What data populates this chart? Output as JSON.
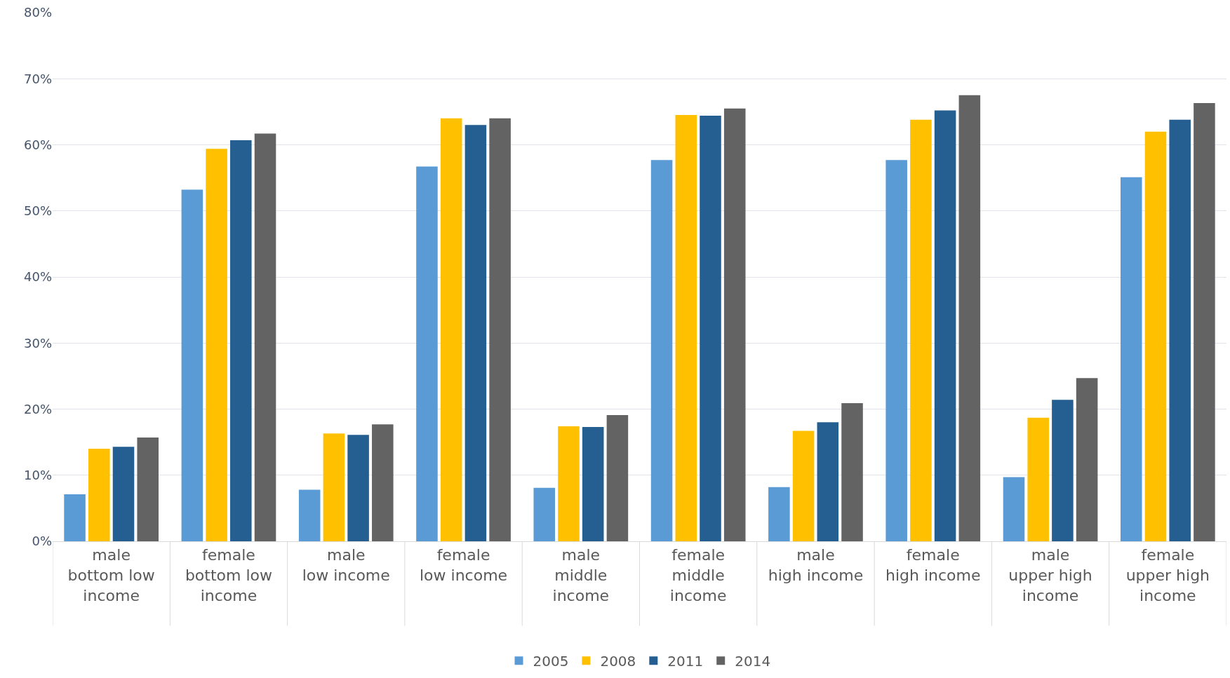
{
  "chart_data": {
    "type": "bar",
    "categories": [
      "male\nbottom low\nincome",
      "female\nbottom low\nincome",
      "male\nlow income",
      "female\nlow income",
      "male\nmiddle\nincome",
      "female\nmiddle\nincome",
      "male\nhigh income",
      "female\nhigh income",
      "male\nupper high\nincome",
      "female\nupper high\nincome"
    ],
    "series": [
      {
        "name": "2005",
        "color": "#5b9bd5",
        "values": [
          7.1,
          53.2,
          7.8,
          56.7,
          8.1,
          57.7,
          8.2,
          57.7,
          9.7,
          55.1
        ]
      },
      {
        "name": "2008",
        "color": "#ffc000",
        "values": [
          14.0,
          59.4,
          16.3,
          64.0,
          17.4,
          64.5,
          16.7,
          63.8,
          18.7,
          62.0
        ]
      },
      {
        "name": "2011",
        "color": "#255e91",
        "values": [
          14.3,
          60.7,
          16.1,
          63.0,
          17.3,
          64.4,
          18.0,
          65.2,
          21.4,
          63.8
        ]
      },
      {
        "name": "2014",
        "color": "#636363",
        "values": [
          15.7,
          61.7,
          17.7,
          64.0,
          19.1,
          65.5,
          20.9,
          67.5,
          24.7,
          66.3
        ]
      }
    ],
    "ylim": [
      0,
      80
    ],
    "yticks": [
      {
        "value": 0,
        "label": "0%"
      },
      {
        "value": 10,
        "label": "10%"
      },
      {
        "value": 20,
        "label": "20%"
      },
      {
        "value": 30,
        "label": "30%"
      },
      {
        "value": 40,
        "label": "40%"
      },
      {
        "value": 50,
        "label": "50%"
      },
      {
        "value": 60,
        "label": "60%"
      },
      {
        "value": 70,
        "label": "70%"
      },
      {
        "value": 80,
        "label": "80%"
      }
    ],
    "grid": "y",
    "legend": "bottom"
  }
}
